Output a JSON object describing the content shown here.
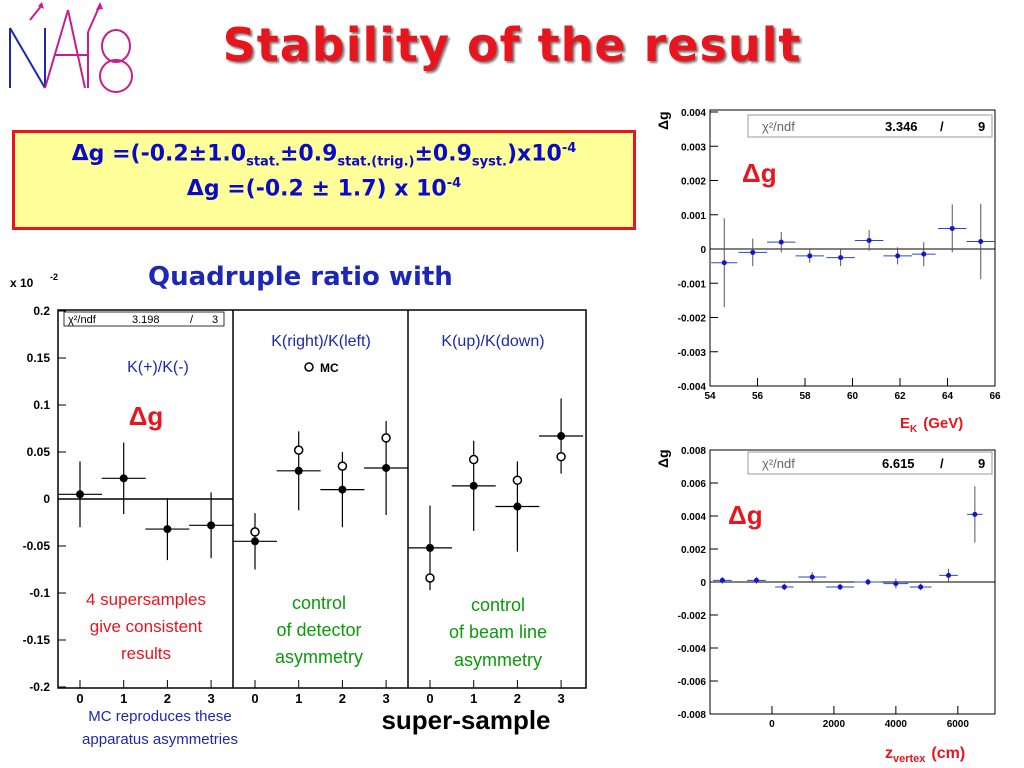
{
  "title": "Stability of the result",
  "result": {
    "line1": {
      "prefix": "Δg =(-0.2±1.0",
      "sub1": "stat.",
      "mid1": "±0.9",
      "sub2": "stat.(trig.)",
      "mid2": "±0.9",
      "sub3": "syst.",
      "tail": ")x10",
      "exp": "-4"
    },
    "line2": {
      "text": "Δg =(-0.2 ± 1.7) x 10",
      "exp": "-4"
    }
  },
  "quadruple_title": "Quadruple ratio with",
  "colors": {
    "title": "#e8141e",
    "blue_text": "#1c28b4",
    "green_text": "#0a9a0a",
    "red_text": "#e8141e",
    "point_blue": "#1414d2",
    "line_blue": "#2848c8"
  },
  "left_panel": {
    "scale_label": "x 10",
    "scale_exp": "-2",
    "fit_label": "χ²/ndf",
    "fit_value": "3.198",
    "fit_sep": "/",
    "fit_ndf": "3",
    "panel_labels": [
      "K(+)/K(-)",
      "K(right)/K(left)",
      "K(up)/K(down)"
    ],
    "mc_label": "MC",
    "dg_label": "Δg",
    "annotations": [
      [
        "4 supersamples",
        "give consistent",
        "results"
      ],
      [
        "control",
        "of detector",
        "asymmetry"
      ],
      [
        "control",
        "of beam line",
        "asymmetry"
      ]
    ],
    "xlabel": "super-sample",
    "mc_caption": [
      "MC reproduces these",
      "apparatus asymmetries"
    ]
  },
  "right_top": {
    "ylabel": "Δg",
    "fit_label": "χ²/ndf",
    "fit_value": "3.346",
    "fit_sep": "/",
    "fit_ndf": "9",
    "dg_label": "Δg",
    "xlabel_main": "E",
    "xlabel_sub": "K",
    "xlabel_unit": "(GeV)"
  },
  "right_bottom": {
    "ylabel": "Δg",
    "fit_label": "χ²/ndf",
    "fit_value": "6.615",
    "fit_sep": "/",
    "fit_ndf": "9",
    "dg_label": "Δg",
    "xlabel_main": "z",
    "xlabel_sub": "vertex",
    "xlabel_unit": "(cm)"
  },
  "chart_data": [
    {
      "type": "scatter",
      "title": "",
      "xlabel": "super-sample",
      "ylabel": "",
      "ylim": [
        -0.2,
        0.2
      ],
      "y_unit": "x 10^-2",
      "x_ticks": [
        "0",
        "1",
        "2",
        "3",
        "0",
        "1",
        "2",
        "3",
        "0",
        "1",
        "2",
        "3"
      ],
      "y_ticks": [
        "0.2",
        "0.15",
        "0.1",
        "0.05",
        "0",
        "-0.05",
        "-0.1",
        "-0.15",
        "-0.2"
      ],
      "panels": [
        {
          "name": "K(+)/K(-)",
          "series": [
            {
              "name": "data",
              "x": [
                0,
                1,
                2,
                3
              ],
              "y": [
                0.005,
                0.022,
                -0.032,
                -0.028
              ],
              "yerr": [
                0.035,
                0.038,
                0.033,
                0.035
              ]
            }
          ]
        },
        {
          "name": "K(right)/K(left)",
          "series": [
            {
              "name": "data",
              "x": [
                0,
                1,
                2,
                3
              ],
              "y": [
                -0.045,
                0.03,
                0.01,
                0.033
              ],
              "yerr": [
                0.03,
                0.042,
                0.04,
                0.05
              ]
            },
            {
              "name": "MC",
              "x": [
                0,
                1,
                2,
                3
              ],
              "y": [
                -0.035,
                0.052,
                0.035,
                0.065
              ]
            }
          ]
        },
        {
          "name": "K(up)/K(down)",
          "series": [
            {
              "name": "data",
              "x": [
                0,
                1,
                2,
                3
              ],
              "y": [
                -0.052,
                0.014,
                -0.008,
                0.067
              ],
              "yerr": [
                0.045,
                0.048,
                0.048,
                0.04
              ]
            },
            {
              "name": "MC",
              "x": [
                0,
                1,
                2,
                3
              ],
              "y": [
                -0.084,
                0.042,
                0.02,
                0.045
              ]
            }
          ]
        }
      ]
    },
    {
      "type": "scatter",
      "title": "",
      "xlabel": "E_K (GeV)",
      "ylabel": "Δg",
      "xlim": [
        54,
        66
      ],
      "ylim": [
        -0.004,
        0.004
      ],
      "x_ticks": [
        "54",
        "56",
        "58",
        "60",
        "62",
        "64",
        "66"
      ],
      "y_ticks": [
        "0.004",
        "0.003",
        "0.002",
        "0.001",
        "0",
        "-0.001",
        "-0.002",
        "-0.003",
        "-0.004"
      ],
      "series": [
        {
          "name": "",
          "x": [
            54.6,
            55.8,
            57.0,
            58.2,
            59.5,
            60.7,
            61.9,
            63.0,
            64.2,
            65.4
          ],
          "y": [
            -0.0004,
            -0.0001,
            0.0002,
            -0.0002,
            -0.00025,
            0.00025,
            -0.0002,
            -0.00015,
            0.0006,
            0.00022
          ],
          "yerr": [
            0.0013,
            0.0004,
            0.0003,
            0.0002,
            0.00025,
            0.0003,
            0.00025,
            0.00035,
            0.0007,
            0.0011
          ],
          "xerr": [
            0.55,
            0.6,
            0.6,
            0.6,
            0.6,
            0.6,
            0.6,
            0.5,
            0.6,
            0.6
          ]
        }
      ],
      "fit_line_y": 0
    },
    {
      "type": "scatter",
      "title": "",
      "xlabel": "z_vertex (cm)",
      "ylabel": "Δg",
      "xlim": [
        -2000,
        7200
      ],
      "ylim": [
        -0.008,
        0.008
      ],
      "x_ticks": [
        "0",
        "2000",
        "4000",
        "6000"
      ],
      "y_ticks": [
        "0.008",
        "0.006",
        "0.004",
        "0.002",
        "0",
        "-0.002",
        "-0.004",
        "-0.006",
        "-0.008"
      ],
      "series": [
        {
          "name": "",
          "x": [
            -1600,
            -500,
            400,
            1300,
            2200,
            3100,
            4000,
            4800,
            5700,
            6550
          ],
          "y": [
            0.0001,
            0.0001,
            -0.0003,
            0.0003,
            -0.0003,
            0.0,
            -0.0001,
            -0.0003,
            0.0004,
            0.0041
          ],
          "yerr": [
            0.0002,
            0.0002,
            0.0002,
            0.0003,
            0.0002,
            0.0002,
            0.0003,
            0.0002,
            0.0004,
            0.0017
          ],
          "xerr": [
            300,
            300,
            300,
            450,
            450,
            450,
            400,
            350,
            300,
            250
          ]
        }
      ],
      "fit_line_y": 0
    }
  ]
}
